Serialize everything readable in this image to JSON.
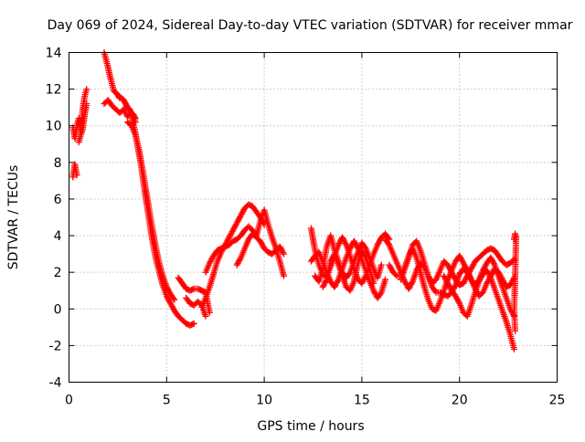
{
  "chart_data": {
    "type": "scatter",
    "title": "Day 069 of 2024, Sidereal Day-to-day VTEC variation (SDTVAR) for receiver mmar",
    "xlabel": "GPS time / hours",
    "ylabel": "SDTVAR / TECUs",
    "xlim": [
      0,
      25
    ],
    "ylim": [
      -4,
      14
    ],
    "xticks": [
      "0",
      "5",
      "10",
      "15",
      "20",
      "25"
    ],
    "yticks": [
      "-4",
      "-2",
      "0",
      "2",
      "4",
      "6",
      "8",
      "10",
      "12",
      "14"
    ],
    "grid": true,
    "marker": "plus",
    "color": "#ff0000",
    "series": [
      {
        "name": "s1",
        "x": [
          0.2,
          0.25,
          0.3,
          0.35,
          0.4
        ],
        "y": [
          7.2,
          7.6,
          7.9,
          7.6,
          7.3
        ]
      },
      {
        "name": "s2",
        "x": [
          0.2,
          0.3,
          0.4,
          0.5,
          0.6,
          0.7,
          0.8,
          0.9
        ],
        "y": [
          9.9,
          9.3,
          10.0,
          10.4,
          9.6,
          10.9,
          11.6,
          12.0
        ]
      },
      {
        "name": "s3",
        "x": [
          0.5,
          0.6,
          0.7,
          0.8,
          0.9
        ],
        "y": [
          9.1,
          9.5,
          9.8,
          10.6,
          11.2
        ]
      },
      {
        "name": "s4",
        "x": [
          1.8,
          1.9,
          2.0,
          2.1,
          2.2,
          2.3,
          2.4,
          2.5,
          2.6,
          2.7,
          2.8,
          2.9,
          3.0,
          3.1,
          3.2,
          3.3,
          3.4
        ],
        "y": [
          14.0,
          13.6,
          13.2,
          12.7,
          12.3,
          11.9,
          11.8,
          11.7,
          11.5,
          11.5,
          11.4,
          11.2,
          11.0,
          10.9,
          10.7,
          10.6,
          10.4
        ]
      },
      {
        "name": "s5",
        "x": [
          1.8,
          2.0,
          2.2,
          2.4,
          2.6,
          2.8,
          3.0,
          3.2,
          3.4
        ],
        "y": [
          11.2,
          11.4,
          11.1,
          10.9,
          10.7,
          10.9,
          10.5,
          10.7,
          10.2
        ]
      },
      {
        "name": "s6",
        "x": [
          3.2,
          3.3,
          3.4,
          3.5,
          3.6,
          3.7,
          3.8,
          3.9,
          4.0,
          4.1,
          4.2,
          4.3,
          4.4,
          4.5,
          4.6,
          4.7,
          4.8,
          4.9,
          5.0,
          5.2,
          5.4,
          5.6,
          5.8,
          6.0,
          6.2,
          6.4
        ],
        "y": [
          10.6,
          10.1,
          9.6,
          9.0,
          8.4,
          7.8,
          7.0,
          6.3,
          5.6,
          4.9,
          4.2,
          3.6,
          3.0,
          2.5,
          2.1,
          1.7,
          1.3,
          1.0,
          0.7,
          0.3,
          -0.1,
          -0.4,
          -0.6,
          -0.8,
          -0.9,
          -0.8
        ]
      },
      {
        "name": "s7",
        "x": [
          3.0,
          3.2,
          3.4,
          3.6,
          3.8,
          4.0,
          4.2,
          4.4,
          4.6,
          4.8,
          5.0,
          5.2,
          5.4
        ],
        "y": [
          10.2,
          10.0,
          9.5,
          8.6,
          7.4,
          6.1,
          4.8,
          3.6,
          2.6,
          1.8,
          1.2,
          0.8,
          0.5
        ]
      },
      {
        "name": "s8",
        "x": [
          5.6,
          5.8,
          6.0,
          6.2,
          6.4,
          6.6,
          6.8,
          7.0,
          7.2
        ],
        "y": [
          1.7,
          1.4,
          1.1,
          1.0,
          1.1,
          1.1,
          1.0,
          0.9,
          -0.2
        ]
      },
      {
        "name": "s9",
        "x": [
          6.0,
          6.2,
          6.4,
          6.6,
          6.8,
          7.0
        ],
        "y": [
          0.6,
          0.3,
          0.2,
          0.4,
          0.2,
          -0.4
        ]
      },
      {
        "name": "s10",
        "x": [
          6.8,
          7.0,
          7.2,
          7.4,
          7.6,
          7.8,
          8.0,
          8.2,
          8.4,
          8.6,
          8.8,
          9.0,
          9.2,
          9.4,
          9.6,
          9.8,
          10.0
        ],
        "y": [
          0.1,
          0.6,
          1.2,
          1.9,
          2.6,
          3.1,
          3.5,
          3.9,
          4.3,
          4.7,
          5.1,
          5.5,
          5.7,
          5.6,
          5.3,
          5.0,
          4.6
        ]
      },
      {
        "name": "s11",
        "x": [
          7.0,
          7.2,
          7.4,
          7.6,
          7.8,
          8.0,
          8.2,
          8.4,
          8.6,
          8.8,
          9.0,
          9.2,
          9.4,
          9.6,
          9.8,
          10.0,
          10.2,
          10.4,
          10.6,
          10.8,
          11.0
        ],
        "y": [
          2.0,
          2.5,
          2.9,
          3.2,
          3.3,
          3.4,
          3.5,
          3.7,
          3.8,
          4.0,
          4.3,
          4.5,
          4.3,
          4.0,
          4.8,
          5.4,
          4.6,
          3.9,
          3.3,
          2.6,
          1.8
        ]
      },
      {
        "name": "s12",
        "x": [
          8.6,
          8.8,
          9.0,
          9.2,
          9.4,
          9.6,
          9.8,
          10.0,
          10.2,
          10.4,
          10.6,
          10.8,
          11.0
        ],
        "y": [
          2.4,
          2.8,
          3.3,
          3.8,
          4.1,
          3.9,
          3.7,
          3.3,
          3.1,
          3.0,
          3.2,
          3.4,
          3.0
        ]
      },
      {
        "name": "s13",
        "x": [
          12.4,
          12.6,
          12.8,
          13.0,
          13.2,
          13.4,
          13.6,
          13.8,
          14.0,
          14.2,
          14.4,
          14.6,
          14.8,
          15.0,
          15.2,
          15.4,
          15.6,
          15.8,
          16.0,
          16.2,
          16.4
        ],
        "y": [
          4.4,
          3.2,
          2.4,
          1.9,
          1.8,
          2.3,
          2.9,
          3.5,
          3.9,
          3.5,
          2.9,
          2.2,
          1.6,
          1.4,
          1.8,
          2.4,
          3.0,
          3.5,
          3.9,
          4.1,
          3.8
        ]
      },
      {
        "name": "s14",
        "x": [
          12.4,
          12.6,
          12.8,
          13.0,
          13.2,
          13.4,
          13.6,
          13.8,
          14.0,
          14.2,
          14.4,
          14.6,
          14.8,
          15.0,
          15.2,
          15.4,
          15.6,
          15.8,
          16.0,
          16.2
        ],
        "y": [
          2.6,
          2.9,
          3.1,
          2.6,
          2.0,
          1.5,
          1.2,
          1.6,
          2.2,
          2.8,
          3.3,
          3.7,
          3.3,
          2.7,
          2.1,
          1.5,
          1.0,
          0.6,
          0.9,
          1.6
        ]
      },
      {
        "name": "s15",
        "x": [
          12.6,
          12.8,
          13.0,
          13.2,
          13.4,
          13.6,
          13.8,
          14.0,
          14.2,
          14.4,
          14.6,
          14.8,
          15.0,
          15.2,
          15.4,
          15.6,
          15.8,
          16.0
        ],
        "y": [
          1.8,
          1.5,
          2.2,
          3.4,
          4.0,
          3.2,
          2.6,
          2.0,
          1.7,
          2.0,
          2.6,
          3.1,
          3.6,
          3.3,
          2.8,
          2.2,
          1.7,
          2.4
        ]
      },
      {
        "name": "s16",
        "x": [
          13.0,
          13.2,
          13.4,
          13.6,
          13.8,
          14.0,
          14.2,
          14.4,
          14.6,
          14.8,
          15.0,
          15.2,
          15.4,
          15.6
        ],
        "y": [
          1.2,
          1.6,
          2.6,
          3.0,
          2.4,
          1.8,
          1.2,
          1.0,
          1.5,
          2.5,
          3.2,
          2.8,
          2.2,
          1.4
        ]
      },
      {
        "name": "s17",
        "x": [
          16.2,
          16.4,
          16.6,
          16.8,
          17.0,
          17.2,
          17.4,
          17.6,
          17.8,
          18.0,
          18.2,
          18.4,
          18.6,
          18.8,
          19.0,
          19.2,
          19.4,
          19.6,
          19.8,
          20.0,
          20.2,
          20.4,
          20.6,
          20.8,
          21.0,
          21.2,
          21.4,
          21.6,
          21.8,
          22.0,
          22.2,
          22.4,
          22.6,
          22.8
        ],
        "y": [
          3.8,
          3.5,
          3.0,
          2.5,
          2.0,
          1.5,
          1.1,
          1.5,
          2.1,
          2.5,
          2.3,
          1.8,
          1.4,
          1.6,
          2.1,
          2.6,
          2.4,
          2.0,
          1.6,
          1.3,
          1.4,
          1.8,
          2.2,
          2.6,
          2.8,
          3.0,
          3.2,
          3.3,
          3.2,
          2.9,
          2.6,
          2.4,
          2.5,
          2.7
        ]
      },
      {
        "name": "s18",
        "x": [
          16.4,
          16.6,
          16.8,
          17.0,
          17.2,
          17.4,
          17.6,
          17.8,
          18.0,
          18.2,
          18.4,
          18.6,
          18.8,
          19.0,
          19.2,
          19.4,
          19.6,
          19.8,
          20.0,
          20.2,
          20.4,
          20.6,
          20.8,
          21.0,
          21.2,
          21.4,
          21.6,
          21.8,
          22.0,
          22.2,
          22.4,
          22.6,
          22.8
        ],
        "y": [
          2.4,
          2.0,
          1.8,
          1.8,
          2.3,
          2.9,
          3.3,
          2.8,
          2.0,
          1.2,
          0.5,
          0.0,
          -0.1,
          0.4,
          1.0,
          1.6,
          2.1,
          2.6,
          2.9,
          2.5,
          2.1,
          1.6,
          1.1,
          0.7,
          0.9,
          1.4,
          1.8,
          2.2,
          2.0,
          1.6,
          1.2,
          1.3,
          1.7
        ]
      },
      {
        "name": "s19",
        "x": [
          17.0,
          17.2,
          17.4,
          17.6,
          17.8,
          18.0,
          18.2,
          18.4,
          18.6,
          18.8,
          19.0,
          19.2,
          19.4,
          19.6,
          19.8,
          20.0,
          20.2,
          20.4,
          20.6,
          20.8,
          21.0,
          21.2,
          21.4,
          21.6,
          21.8,
          22.0,
          22.2,
          22.4,
          22.6,
          22.8
        ],
        "y": [
          1.6,
          2.2,
          2.8,
          3.5,
          3.7,
          3.2,
          2.5,
          1.8,
          1.2,
          0.9,
          0.9,
          0.8,
          0.7,
          0.9,
          1.3,
          1.9,
          2.2,
          2.0,
          1.6,
          1.3,
          1.6,
          2.1,
          2.5,
          2.8,
          2.4,
          1.8,
          1.2,
          0.6,
          0.0,
          -0.4
        ]
      },
      {
        "name": "s20",
        "x": [
          19.2,
          19.4,
          19.6,
          19.8,
          20.0,
          20.2,
          20.4,
          20.6,
          20.8,
          21.0,
          21.2,
          21.4,
          21.6,
          21.8,
          22.0,
          22.2,
          22.4,
          22.6,
          22.8
        ],
        "y": [
          1.8,
          1.4,
          1.0,
          0.7,
          0.3,
          -0.2,
          -0.4,
          0.2,
          0.9,
          1.5,
          1.9,
          2.1,
          1.7,
          1.1,
          0.5,
          -0.1,
          -0.7,
          -1.4,
          -2.2
        ]
      },
      {
        "name": "s21",
        "x": [
          22.8,
          22.85,
          22.9,
          22.85,
          22.8,
          22.85
        ],
        "y": [
          3.8,
          4.1,
          3.9,
          1.8,
          0.0,
          -1.2
        ]
      }
    ]
  }
}
